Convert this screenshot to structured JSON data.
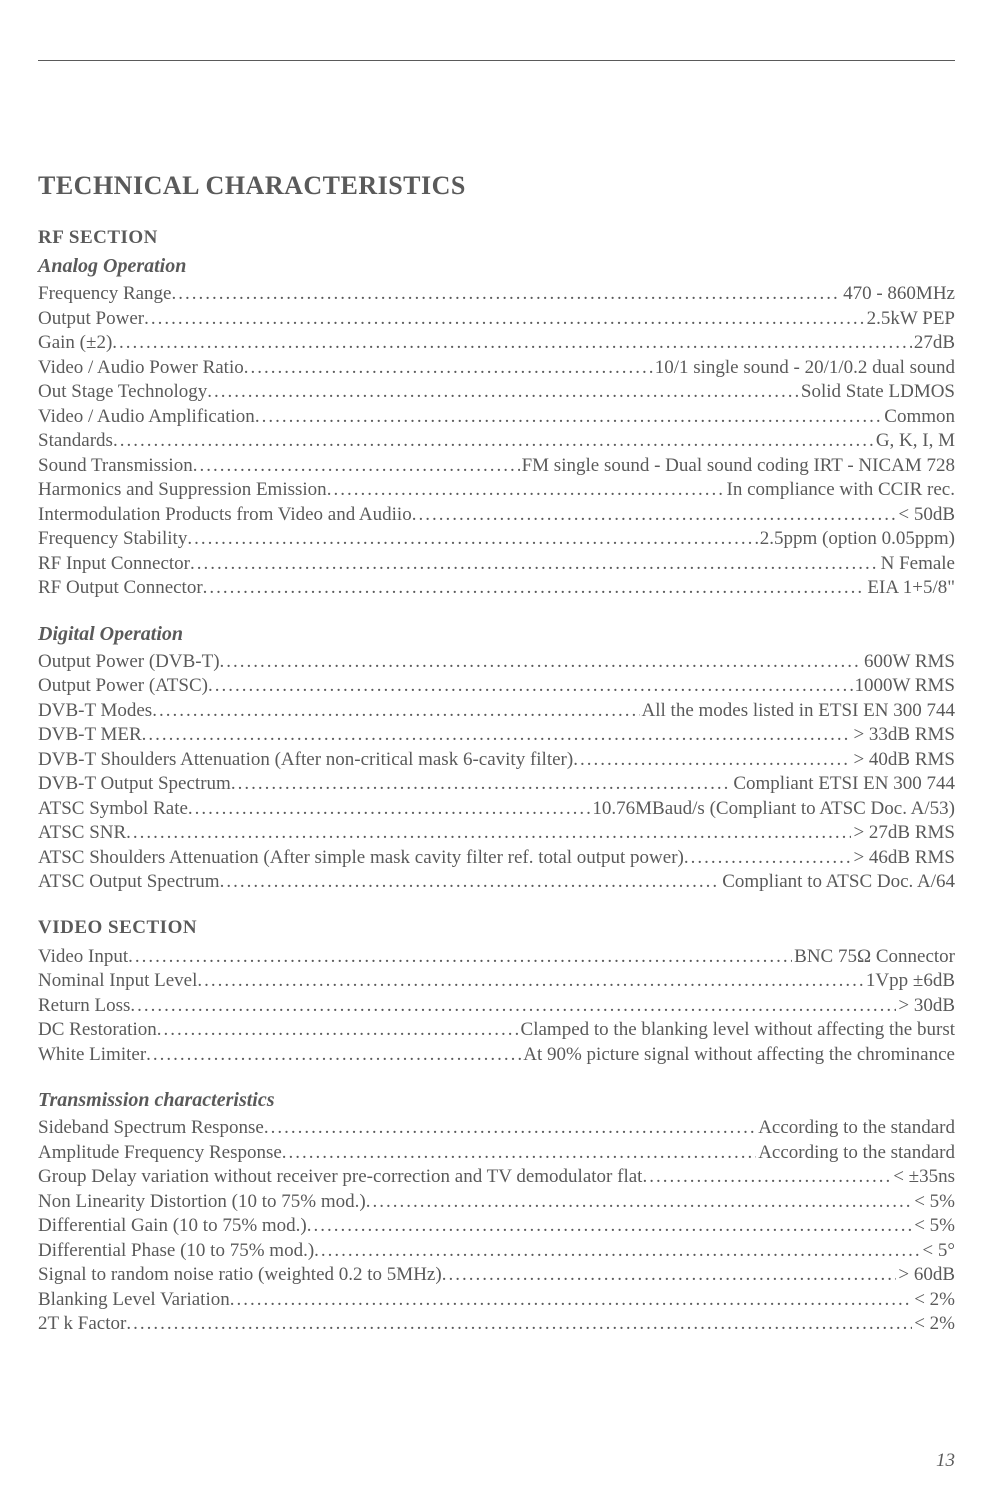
{
  "page_number": "13",
  "title": "TECHNICAL CHARACTERISTICS",
  "sections": [
    {
      "heading": "RF SECTION",
      "subsections": [
        {
          "heading": "Analog Operation",
          "rows": [
            {
              "label": "Frequency Range",
              "value": "470 - 860MHz"
            },
            {
              "label": "Output Power",
              "value": "2.5kW PEP"
            },
            {
              "label": "Gain (±2)",
              "value": "27dB"
            },
            {
              "label": "Video / Audio Power Ratio",
              "value": "10/1 single sound - 20/1/0.2 dual sound"
            },
            {
              "label": "Out Stage Technology",
              "value": "Solid State LDMOS"
            },
            {
              "label": "Video / Audio Amplification",
              "value": "Common"
            },
            {
              "label": "Standards",
              "value": "G, K, I, M"
            },
            {
              "label": "Sound Transmission",
              "value": "FM single sound - Dual sound coding IRT - NICAM 728"
            },
            {
              "label": "Harmonics and Suppression Emission",
              "value": "In compliance with CCIR rec."
            },
            {
              "label": "Intermodulation Products from Video and Audiio",
              "value": "< 50dB"
            },
            {
              "label": "Frequency Stability",
              "value": "2.5ppm (option 0.05ppm)"
            },
            {
              "label": "RF Input Connector",
              "value": "N Female"
            },
            {
              "label": "RF Output Connector",
              "value": "EIA 1+5/8\""
            }
          ]
        },
        {
          "heading": "Digital Operation",
          "rows": [
            {
              "label": "Output Power (DVB-T)",
              "value": "600W RMS"
            },
            {
              "label": "Output Power (ATSC)",
              "value": "1000W RMS"
            },
            {
              "label": "DVB-T Modes",
              "value": "All the modes listed in ETSI EN 300 744"
            },
            {
              "label": "DVB-T MER",
              "value": "> 33dB RMS"
            },
            {
              "label": "DVB-T Shoulders Attenuation (After non-critical mask 6-cavity filter)",
              "value": "> 40dB RMS"
            },
            {
              "label": "DVB-T Output Spectrum",
              "value": "Compliant ETSI EN 300 744"
            },
            {
              "label": "ATSC Symbol Rate",
              "value": "10.76MBaud/s (Compliant to ATSC Doc. A/53)"
            },
            {
              "label": "ATSC SNR",
              "value": "> 27dB RMS"
            },
            {
              "label": "ATSC Shoulders Attenuation (After simple mask cavity filter ref. total output power)",
              "value": "> 46dB RMS"
            },
            {
              "label": "ATSC Output Spectrum",
              "value": "Compliant to ATSC Doc. A/64"
            }
          ]
        }
      ]
    },
    {
      "heading": "VIDEO SECTION",
      "subsections": [
        {
          "heading": "",
          "rows": [
            {
              "label": "Video Input",
              "value": "BNC 75Ω Connector"
            },
            {
              "label": "Nominal Input Level",
              "value": "1Vpp ±6dB"
            },
            {
              "label": "Return Loss",
              "value": "> 30dB"
            },
            {
              "label": "DC Restoration",
              "value": "Clamped to the blanking level without affecting the burst"
            },
            {
              "label": "White Limiter",
              "value": "At 90% picture signal without affecting the chrominance"
            }
          ]
        },
        {
          "heading": "Transmission characteristics",
          "rows": [
            {
              "label": "Sideband Spectrum Response",
              "value": "According to the standard"
            },
            {
              "label": "Amplitude Frequency Response",
              "value": "According to the standard"
            },
            {
              "label": "Group Delay variation without receiver pre-correction and TV demodulator flat",
              "value": "< ±35ns"
            },
            {
              "label": "Non Linearity Distortion (10 to 75% mod.)",
              "value": "< 5%"
            },
            {
              "label": "Differential Gain (10 to 75% mod.)",
              "value": "< 5%"
            },
            {
              "label": "Differential Phase (10 to 75% mod.)",
              "value": "< 5°"
            },
            {
              "label": "Signal to random noise ratio (weighted 0.2 to 5MHz)",
              "value": "> 60dB"
            },
            {
              "label": "Blanking Level Variation",
              "value": "< 2%"
            },
            {
              "label": "2T k Factor",
              "value": "< 2%"
            }
          ]
        }
      ]
    }
  ]
}
